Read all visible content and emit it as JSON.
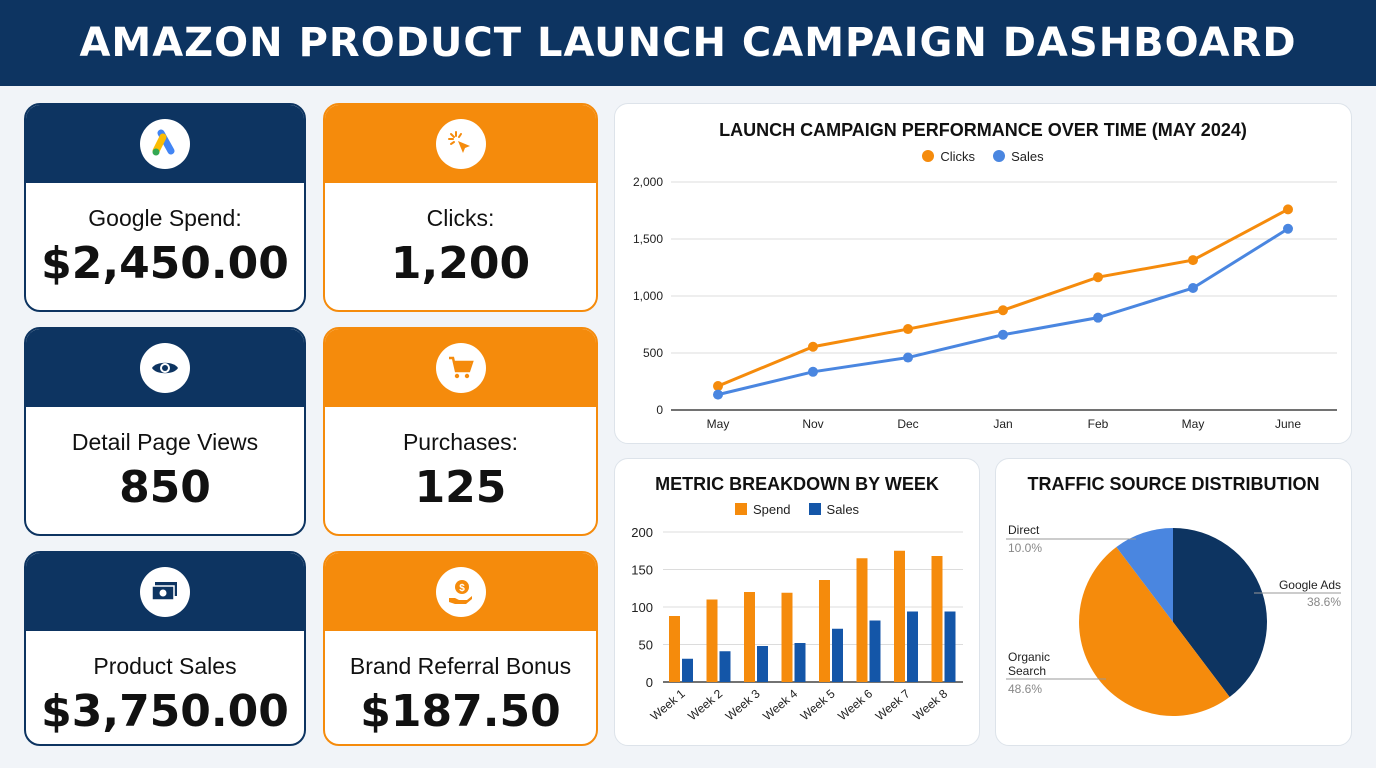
{
  "header": {
    "title": "AMAZON PRODUCT LAUNCH CAMPAIGN DASHBOARD"
  },
  "colors": {
    "navy": "#0d3461",
    "orange": "#f58b0c",
    "blue": "#4a86e0",
    "dark_blue": "#1456a8"
  },
  "kpis": [
    {
      "label": "Google Spend:",
      "value": "$2,450.00",
      "icon": "google-ads-icon",
      "theme": "navy"
    },
    {
      "label": "Clicks:",
      "value": "1,200",
      "icon": "cursor-click-icon",
      "theme": "orange"
    },
    {
      "label": "Detail Page Views",
      "value": "850",
      "icon": "eye-icon",
      "theme": "navy"
    },
    {
      "label": "Purchases:",
      "value": "125",
      "icon": "shopping-cart-icon",
      "theme": "orange"
    },
    {
      "label": "Product Sales",
      "value": "$3,750.00",
      "icon": "cash-icon",
      "theme": "navy"
    },
    {
      "label": "Brand Referral Bonus",
      "value": "$187.50",
      "icon": "hand-coin-icon",
      "theme": "orange"
    }
  ],
  "chart_data": [
    {
      "type": "line",
      "title": "LAUNCH CAMPAIGN PERFORMANCE OVER TIME (MAY 2024)",
      "legend": "top",
      "grid": true,
      "categories": [
        "May",
        "Nov",
        "Dec",
        "Jan",
        "Feb",
        "May",
        "June"
      ],
      "ylim": [
        0,
        2000
      ],
      "yticks": [
        "0",
        "500",
        "1,000",
        "1,500",
        "2,000"
      ],
      "series": [
        {
          "name": "Clicks",
          "color": "#f58b0c",
          "values": [
            210,
            555,
            710,
            875,
            1165,
            1315,
            1760
          ]
        },
        {
          "name": "Sales",
          "color": "#4a86e0",
          "values": [
            135,
            335,
            460,
            660,
            810,
            1070,
            1590
          ]
        }
      ]
    },
    {
      "type": "bar",
      "title": "METRIC BREAKDOWN BY WEEK",
      "legend": "top",
      "grid": true,
      "categories": [
        "Week 1",
        "Week 2",
        "Week 3",
        "Week 4",
        "Week 5",
        "Week 6",
        "Week 7",
        "Week 8"
      ],
      "ylim": [
        0,
        200
      ],
      "yticks": [
        "0",
        "50",
        "100",
        "150",
        "200"
      ],
      "series": [
        {
          "name": "Spend",
          "color": "#f58b0c",
          "values": [
            88,
            110,
            120,
            119,
            136,
            165,
            175,
            168
          ]
        },
        {
          "name": "Sales",
          "color": "#1456a8",
          "values": [
            31,
            41,
            48,
            52,
            71,
            82,
            94,
            94
          ]
        }
      ]
    },
    {
      "type": "pie",
      "title": "TRAFFIC SOURCE DISTRIBUTION",
      "slices": [
        {
          "label": "Google Ads",
          "value": 38.6,
          "pct": "38.6%",
          "color": "#0d3461"
        },
        {
          "label": "Organic Search",
          "value": 48.6,
          "pct": "48.6%",
          "color": "#f58b0c"
        },
        {
          "label": "Direct",
          "value": 10.0,
          "pct": "10.0%",
          "color": "#4a86e0"
        }
      ]
    }
  ]
}
